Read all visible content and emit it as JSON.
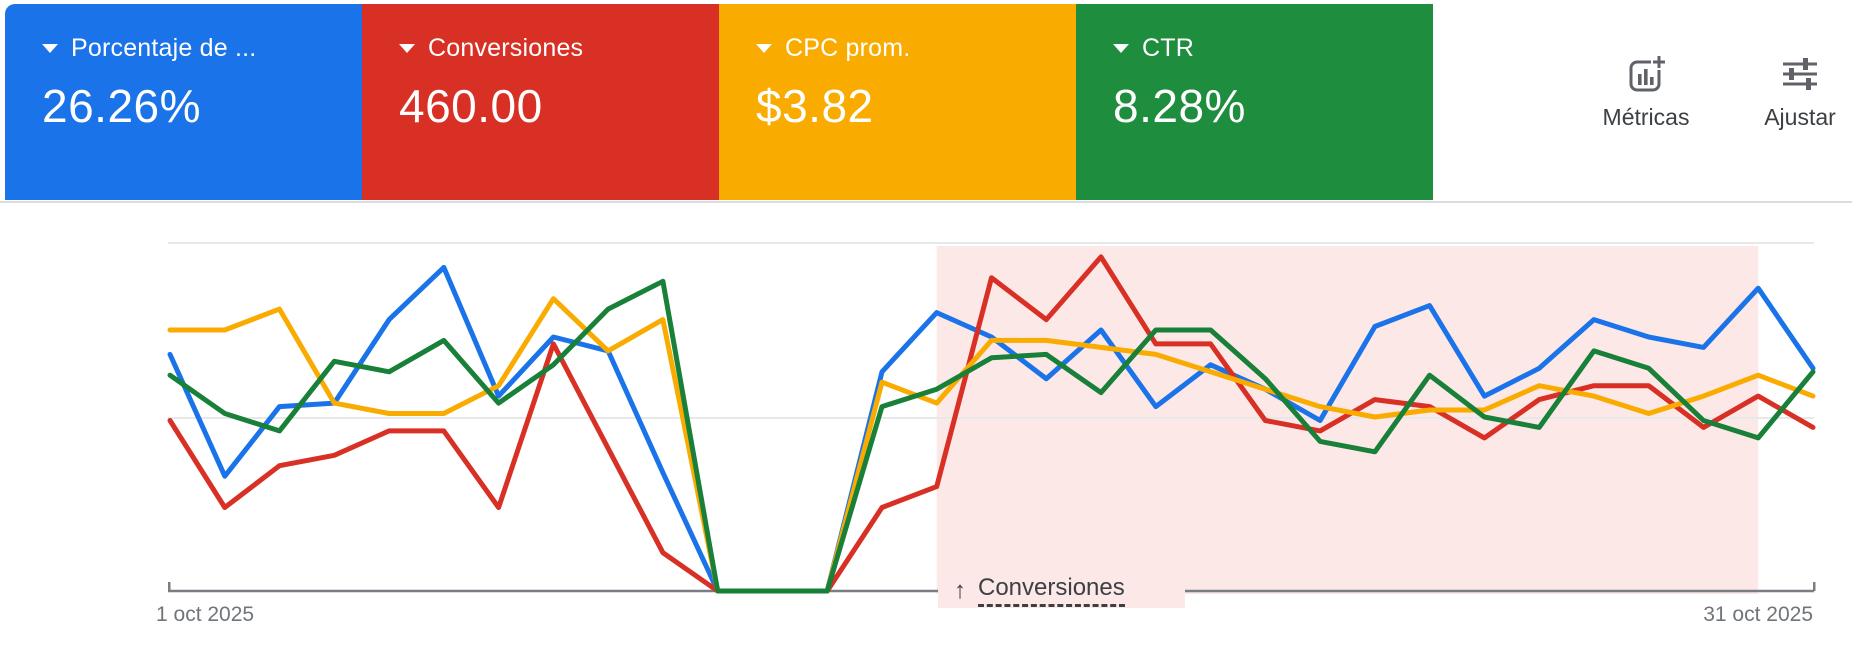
{
  "cards": [
    {
      "label": "Porcentaje de ...",
      "value": "26.26%",
      "color": "#1a73e8"
    },
    {
      "label": "Conversiones",
      "value": "460.00",
      "color": "#d93025"
    },
    {
      "label": "CPC prom.",
      "value": "$3.82",
      "color": "#f9ab00"
    },
    {
      "label": "CTR",
      "value": "8.28%",
      "color": "#1e8e3e"
    }
  ],
  "toolbar": {
    "metrics_label": "Métricas",
    "adjust_label": "Ajustar"
  },
  "chart_data": {
    "type": "line",
    "title": "",
    "x_axis": {
      "start_label": "1 oct 2025",
      "end_label": "31 oct 2025",
      "days": 31
    },
    "y_scale": "normalized_0_100 (no visible y-axis labels; 0 = baseline, 100 = top gridline)",
    "grid": {
      "horizontal_lines": 3,
      "color": "#e6e8ea",
      "axis_color": "#7a7e83"
    },
    "legend_position": "none (colors match metric cards)",
    "series": [
      {
        "name": "Porcentaje de ...",
        "color": "#1a73e8",
        "values": [
          68,
          33,
          53,
          54,
          78,
          93,
          56,
          73,
          69,
          34,
          0,
          0,
          0,
          63,
          80,
          73,
          61,
          75,
          53,
          65,
          58,
          49,
          76,
          82,
          56,
          64,
          78,
          73,
          70,
          87,
          64
        ]
      },
      {
        "name": "Conversiones",
        "color": "#d93025",
        "values": [
          49,
          24,
          36,
          39,
          46,
          46,
          24,
          71,
          41,
          11,
          0,
          0,
          0,
          24,
          30,
          90,
          78,
          96,
          71,
          71,
          49,
          46,
          55,
          53,
          44,
          55,
          59,
          59,
          47,
          56,
          47
        ]
      },
      {
        "name": "CPC prom.",
        "color": "#f9ab00",
        "values": [
          75,
          75,
          81,
          54,
          51,
          51,
          59,
          84,
          69,
          78,
          0,
          0,
          0,
          60,
          54,
          72,
          72,
          70,
          68,
          63,
          58,
          53,
          50,
          52,
          52,
          59,
          56,
          51,
          56,
          62,
          56
        ]
      },
      {
        "name": "CTR",
        "color": "#188038",
        "values": [
          62,
          51,
          46,
          66,
          63,
          72,
          54,
          65,
          81,
          89,
          0,
          0,
          0,
          53,
          58,
          67,
          68,
          57,
          75,
          75,
          61,
          43,
          40,
          62,
          50,
          47,
          69,
          64,
          49,
          44,
          63
        ]
      }
    ],
    "highlight": {
      "arrow": "↑",
      "label": "Conversiones",
      "start_index": 14,
      "end_index": 29,
      "band_color": "#fce8e6"
    }
  }
}
